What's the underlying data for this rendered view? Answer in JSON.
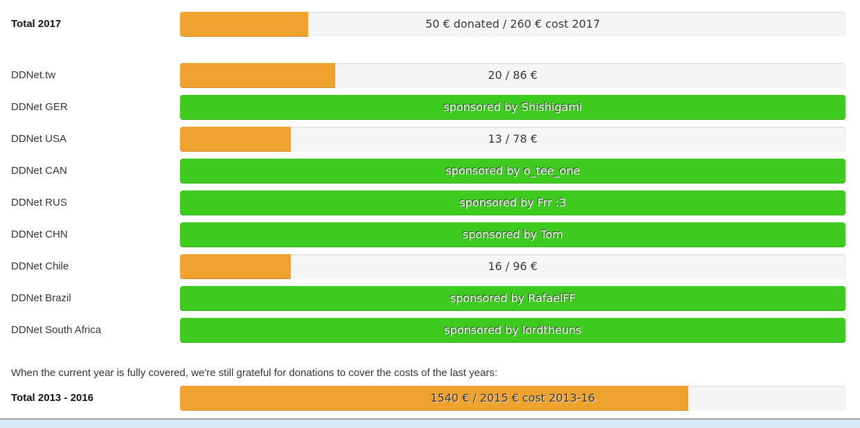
{
  "colors": {
    "orange": "#f0a22e",
    "green": "#3ecb20",
    "track": "#f5f5f5",
    "text_dark": "#333333",
    "text_light": "#ffffff",
    "info_strip": "#d7ebfa"
  },
  "rows": [
    {
      "label": "Total 2017",
      "bold": true,
      "status": "partial",
      "donated": 50,
      "cost": 260,
      "percent": 19.23,
      "text": "50 € donated / 260 € cost 2017"
    },
    {
      "label": "DDNet.tw",
      "bold": false,
      "status": "partial",
      "donated": 20,
      "cost": 86,
      "percent": 23.26,
      "text": "20 / 86 €"
    },
    {
      "label": "DDNet GER",
      "bold": false,
      "status": "sponsored",
      "percent": 100,
      "text": "sponsored by Shishigami"
    },
    {
      "label": "DDNet USA",
      "bold": false,
      "status": "partial",
      "donated": 13,
      "cost": 78,
      "percent": 16.67,
      "text": "13 / 78 €"
    },
    {
      "label": "DDNet CAN",
      "bold": false,
      "status": "sponsored",
      "percent": 100,
      "text": "sponsored by o_tee_one"
    },
    {
      "label": "DDNet RUS",
      "bold": false,
      "status": "sponsored",
      "percent": 100,
      "text": "sponsored by Frr :3"
    },
    {
      "label": "DDNet CHN",
      "bold": false,
      "status": "sponsored",
      "percent": 100,
      "text": "sponsored by Tom"
    },
    {
      "label": "DDNet Chile",
      "bold": false,
      "status": "partial",
      "donated": 16,
      "cost": 96,
      "percent": 16.67,
      "text": "16 / 96 €"
    },
    {
      "label": "DDNet Brazil",
      "bold": false,
      "status": "sponsored",
      "percent": 100,
      "text": "sponsored by RafaelFF"
    },
    {
      "label": "DDNet South Africa",
      "bold": false,
      "status": "sponsored",
      "percent": 100,
      "text": "sponsored by lordtheuns"
    }
  ],
  "note": {
    "text": "When the current year is fully covered, we're still grateful for donations to cover the costs of the last years:"
  },
  "previous": {
    "label": "Total 2013 - 2016",
    "bold": true,
    "status": "partial",
    "donated": 1540,
    "cost": 2015,
    "percent": 76.43,
    "text": "1540 € / 2015 € cost 2013-16"
  }
}
